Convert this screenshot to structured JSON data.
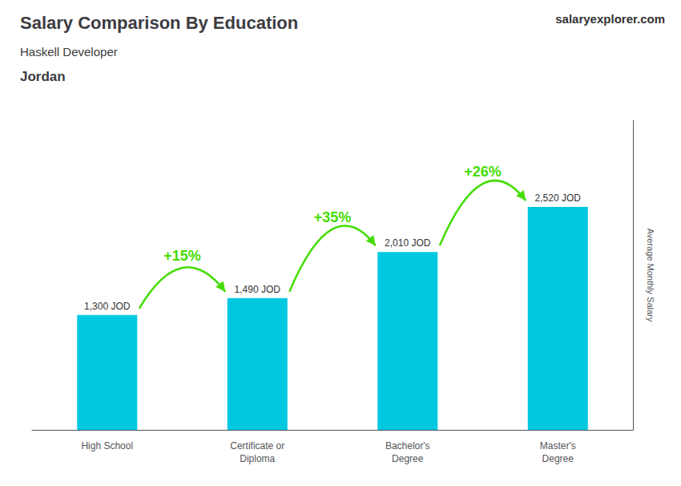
{
  "chart_data": {
    "type": "bar",
    "title": "Salary Comparison By Education",
    "subtitle": [
      "Haskell Developer",
      "Jordan"
    ],
    "ylabel": "Average Monthly Salary",
    "categories": [
      "High School",
      "Certificate or\nDiploma",
      "Bachelor's\nDegree",
      "Master's\nDegree"
    ],
    "values": [
      1300,
      1490,
      2010,
      2520
    ],
    "value_labels": [
      "1,300 JOD",
      "1,490 JOD",
      "2,010 JOD",
      "2,520 JOD"
    ],
    "data_labels": true,
    "color": "#00c8e0",
    "ylim": [
      0,
      3500
    ],
    "tick_labels": "x",
    "grid": false,
    "annotations": [
      {
        "text": "+15%",
        "from": "High School",
        "to": "Certificate or\nDiploma",
        "color": "#44dd00"
      },
      {
        "text": "+35%",
        "from": "Certificate or\nDiploma",
        "to": "Bachelor's\nDegree",
        "color": "#44dd00"
      },
      {
        "text": "+26%",
        "from": "Bachelor's\nDegree",
        "to": "Master's\nDegree",
        "color": "#44dd00"
      },
      {
        "text": "salary"
      },
      {
        "text": "explorer"
      },
      {
        "text": ".com"
      }
    ]
  }
}
